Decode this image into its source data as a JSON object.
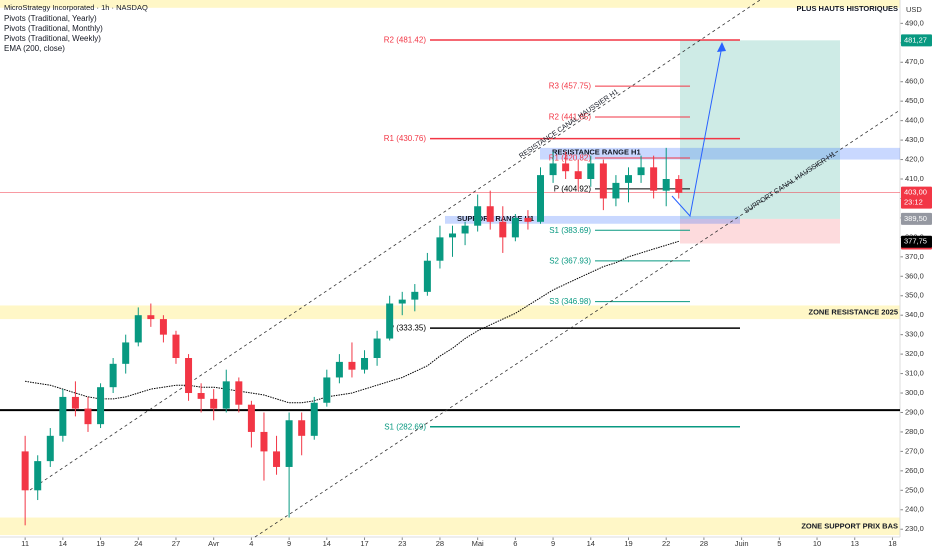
{
  "chart_data": {
    "type": "candlestick",
    "title": "MicroStrategy Incorporated · 1h · NASDAQ",
    "indicators": [
      "Pivots (Traditional, Yearly)",
      "Pivots (Traditional, Monthly)",
      "Pivots (Traditional, Weekly)",
      "EMA (200, close)"
    ],
    "currency": "USD",
    "x": [
      0,
      1,
      2,
      3,
      4,
      5,
      6,
      7,
      8,
      9,
      10,
      11,
      12,
      13,
      14,
      15,
      16,
      17,
      18,
      19,
      20,
      21,
      22,
      23,
      24,
      25,
      26,
      27,
      28,
      29,
      30,
      31,
      32,
      33,
      34,
      35,
      36,
      37,
      38,
      39,
      40,
      41,
      42,
      43,
      44,
      45,
      46,
      47,
      48,
      49,
      50,
      51,
      52
    ],
    "open": [
      270,
      250,
      265,
      278,
      298,
      292,
      284,
      303,
      315,
      326,
      340,
      338,
      330,
      318,
      300,
      297,
      292,
      306,
      294,
      280,
      270,
      262,
      286,
      278,
      295,
      308,
      316,
      312,
      318,
      328,
      346,
      348,
      352,
      368,
      380,
      382,
      386,
      396,
      388,
      380,
      390,
      388,
      412,
      418,
      414,
      410,
      418,
      400,
      408,
      412,
      416,
      404,
      410
    ],
    "high": [
      278,
      268,
      282,
      302,
      306,
      298,
      305,
      318,
      330,
      344,
      346,
      340,
      332,
      320,
      305,
      302,
      312,
      308,
      296,
      290,
      278,
      290,
      290,
      298,
      312,
      320,
      326,
      322,
      332,
      350,
      352,
      356,
      372,
      386,
      386,
      388,
      402,
      404,
      396,
      392,
      394,
      416,
      424,
      424,
      420,
      422,
      420,
      412,
      416,
      422,
      422,
      426,
      412
    ],
    "low": [
      232,
      245,
      262,
      275,
      288,
      280,
      282,
      300,
      310,
      324,
      334,
      326,
      315,
      296,
      290,
      286,
      290,
      290,
      272,
      255,
      258,
      236,
      268,
      276,
      293,
      305,
      308,
      310,
      314,
      327,
      340,
      342,
      350,
      364,
      370,
      376,
      383,
      384,
      372,
      378,
      384,
      387,
      408,
      410,
      404,
      406,
      394,
      396,
      398,
      408,
      400,
      396,
      400
    ],
    "close": [
      250,
      265,
      278,
      298,
      292,
      284,
      303,
      315,
      326,
      340,
      338,
      330,
      318,
      300,
      297,
      292,
      306,
      294,
      280,
      270,
      262,
      286,
      278,
      295,
      308,
      316,
      312,
      318,
      328,
      346,
      348,
      352,
      368,
      380,
      382,
      386,
      396,
      388,
      380,
      390,
      388,
      412,
      418,
      414,
      410,
      418,
      400,
      408,
      412,
      416,
      404,
      410,
      403
    ],
    "up_color": "#089981",
    "down_color": "#f23645",
    "ema": {
      "values": [
        306,
        305,
        304,
        302,
        300,
        298,
        297,
        297,
        298,
        300,
        302,
        303,
        304,
        304,
        303,
        303,
        302,
        301,
        300,
        299,
        297,
        295,
        295,
        296,
        298,
        299,
        300,
        302,
        304,
        306,
        308,
        311,
        314,
        319,
        323,
        328,
        332,
        335,
        338,
        341,
        345,
        349,
        353,
        356,
        359,
        362,
        365,
        367,
        370,
        372,
        374,
        376,
        378
      ],
      "last": {
        "value": 377.75,
        "label": "377,75"
      },
      "color": "#000000"
    },
    "xlim": [
      -2,
      69.6
    ],
    "xticks": [
      {
        "value": 0,
        "label": "11"
      },
      {
        "value": 3,
        "label": "14"
      },
      {
        "value": 6,
        "label": "19"
      },
      {
        "value": 9,
        "label": "24"
      },
      {
        "value": 12,
        "label": "27"
      },
      {
        "value": 15,
        "label": "Avr"
      },
      {
        "value": 18,
        "label": "4"
      },
      {
        "value": 21,
        "label": "9"
      },
      {
        "value": 24,
        "label": "14"
      },
      {
        "value": 27,
        "label": "17"
      },
      {
        "value": 30,
        "label": "23"
      },
      {
        "value": 33,
        "label": "28"
      },
      {
        "value": 36,
        "label": "Mai"
      },
      {
        "value": 39,
        "label": "6"
      },
      {
        "value": 42,
        "label": "9"
      },
      {
        "value": 45,
        "label": "14"
      },
      {
        "value": 48,
        "label": "19"
      },
      {
        "value": 51,
        "label": "22"
      },
      {
        "value": 54,
        "label": "28"
      },
      {
        "value": 57,
        "label": "Juin"
      },
      {
        "value": 60,
        "label": "5"
      },
      {
        "value": 63,
        "label": "10"
      },
      {
        "value": 66,
        "label": "13"
      },
      {
        "value": 69,
        "label": "18"
      }
    ],
    "ylim": [
      226,
      502
    ],
    "yticks": [
      {
        "value": 490,
        "label": "490,0"
      },
      {
        "value": 480,
        "label": "480,0"
      },
      {
        "value": 470,
        "label": "470,0"
      },
      {
        "value": 460,
        "label": "460,0"
      },
      {
        "value": 450,
        "label": "450,0"
      },
      {
        "value": 440,
        "label": "440,0"
      },
      {
        "value": 430,
        "label": "430,0"
      },
      {
        "value": 420,
        "label": "420,0"
      },
      {
        "value": 410,
        "label": "410,0"
      },
      {
        "value": 400,
        "label": "400,0"
      },
      {
        "value": 390,
        "label": "390,0"
      },
      {
        "value": 380,
        "label": "380,0"
      },
      {
        "value": 370,
        "label": "370,0"
      },
      {
        "value": 360,
        "label": "360,0"
      },
      {
        "value": 350,
        "label": "350,0"
      },
      {
        "value": 340,
        "label": "340,0"
      },
      {
        "value": 330,
        "label": "330,0"
      },
      {
        "value": 320,
        "label": "320,0"
      },
      {
        "value": 310,
        "label": "310,0"
      },
      {
        "value": 300,
        "label": "300,0"
      },
      {
        "value": 290,
        "label": "290,0"
      },
      {
        "value": 280,
        "label": "280,0"
      },
      {
        "value": 270,
        "label": "270,0"
      },
      {
        "value": 260,
        "label": "260,0"
      },
      {
        "value": 250,
        "label": "250,0"
      },
      {
        "value": 240,
        "label": "240,0"
      },
      {
        "value": 230,
        "label": "230,0"
      }
    ],
    "pivots": [
      {
        "levels": [
          {
            "label": "R2 (481.42)",
            "value": 481.42,
            "color": "#f23645"
          },
          {
            "label": "R1 (430.76)",
            "value": 430.76,
            "color": "#f23645"
          },
          {
            "label": "P (333.35)",
            "value": 333.35,
            "color": "#000000"
          },
          {
            "label": "S1 (282.69)",
            "value": 282.69,
            "color": "#089981"
          }
        ]
      },
      {
        "levels": [
          {
            "label": "R3 (457.75)",
            "value": 457.75,
            "color": "#f23645"
          },
          {
            "label": "R2 (441.85)",
            "value": 441.85,
            "color": "#f23645"
          },
          {
            "label": "R1 (420.82)",
            "value": 420.82,
            "color": "#f23645"
          },
          {
            "label": "P (404.92)",
            "value": 404.92,
            "color": "#000000"
          },
          {
            "label": "S1 (383.69)",
            "value": 383.69,
            "color": "#089981"
          },
          {
            "label": "S2 (367.93)",
            "value": 367.93,
            "color": "#089981"
          },
          {
            "label": "S3 (346.98)",
            "value": 346.98,
            "color": "#089981"
          }
        ]
      }
    ],
    "zones": [
      {
        "label": "PLUS HAUTS HISTORIQUES",
        "range": [
          498,
          503
        ]
      },
      {
        "label": "ZONE RESISTANCE 2025",
        "range": [
          338,
          345
        ]
      },
      {
        "label": "ZONE SUPPORT PRIX BAS",
        "range": [
          227,
          236
        ]
      }
    ],
    "ranges": [
      {
        "label": "RESISTANCE RANGE H1",
        "range": [
          420,
          426
        ]
      },
      {
        "label": "SUPPORT RANGE H1",
        "range": [
          387,
          391
        ]
      }
    ],
    "horizontal_lines": [
      291.2
    ],
    "channels": [
      "RESISTANCE CANAL HAUSSIER H1",
      "SUPPORT CANAL HAUSSIER H1"
    ],
    "position": {
      "target": {
        "value": 481.27,
        "label": "481,27"
      },
      "entry": {
        "value": 389.5,
        "label": "389,50"
      },
      "stop": {
        "value": 376.85,
        "label": "376,85"
      }
    },
    "last_price": {
      "value": 403,
      "label": "403,00",
      "countdown": "23:12"
    }
  }
}
